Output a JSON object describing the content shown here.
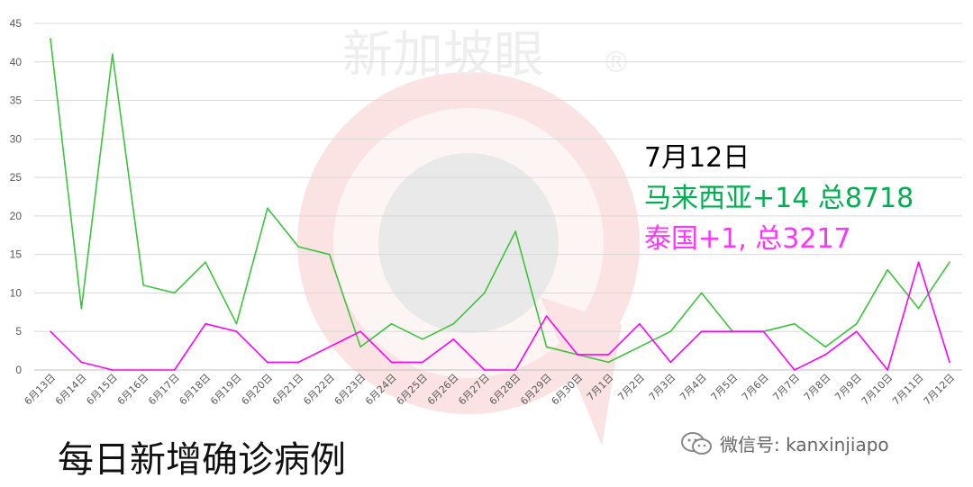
{
  "watermark": {
    "text": "新加坡眼",
    "mark": "®",
    "color": "#e8e8e8"
  },
  "annotation": {
    "date": "7月12日",
    "malaysia": "马来西亚+14 总8718",
    "thailand": "泰国+1, 总3217"
  },
  "bottom_title": "每日新增确诊病例",
  "wechat": {
    "label": "微信号: kanxinjiapo",
    "icon": "wechat-icon"
  },
  "colors": {
    "malaysia": "#3cc43c",
    "thailand": "#ff00ff",
    "grid": "#d9d9d9",
    "watermark_logo": "#f2c4c4"
  },
  "chart_data": {
    "type": "line",
    "title": "",
    "xlabel": "",
    "ylabel": "",
    "ylim": [
      0,
      45
    ],
    "yticks": [
      0,
      5,
      10,
      15,
      20,
      25,
      30,
      35,
      40,
      45
    ],
    "grid": true,
    "x": [
      "6月13日",
      "6月14日",
      "6月15日",
      "6月16日",
      "6月17日",
      "6月18日",
      "6月19日",
      "6月20日",
      "6月21日",
      "6月22日",
      "6月23日",
      "6月24日",
      "6月25日",
      "6月26日",
      "6月27日",
      "6月28日",
      "6月29日",
      "6月30日",
      "7月1日",
      "7月2日",
      "7月3日",
      "7月4日",
      "7月5日",
      "7月6日",
      "7月7日",
      "7月8日",
      "7月9日",
      "7月10日",
      "7月11日",
      "7月12日"
    ],
    "series": [
      {
        "key": "malaysia",
        "color": "#3cc43c",
        "values": [
          43,
          8,
          41,
          11,
          10,
          14,
          6,
          21,
          16,
          15,
          3,
          6,
          4,
          6,
          10,
          18,
          3,
          2,
          1,
          3,
          5,
          10,
          5,
          5,
          6,
          3,
          6,
          13,
          8,
          14
        ]
      },
      {
        "key": "thailand",
        "color": "#ff00ff",
        "values": [
          5,
          1,
          0,
          0,
          0,
          6,
          5,
          1,
          1,
          3,
          5,
          1,
          1,
          4,
          0,
          0,
          7,
          2,
          2,
          6,
          1,
          5,
          5,
          5,
          0,
          2,
          5,
          0,
          14,
          1
        ]
      }
    ]
  }
}
